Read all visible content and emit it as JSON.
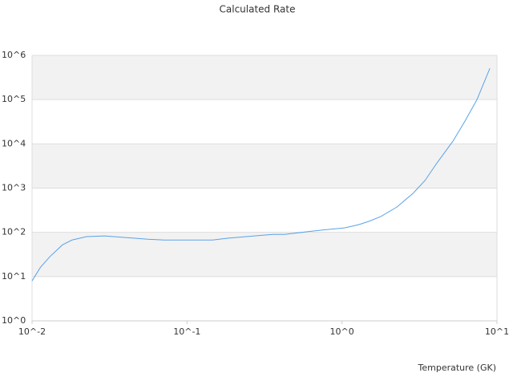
{
  "chart_data": {
    "type": "line",
    "title": "Calculated Rate",
    "x_label": "Temperature (GK)",
    "x_scale": "log",
    "y_scale": "log",
    "grid": true,
    "xlim": [
      0.01,
      10
    ],
    "ylim": [
      1,
      1000000
    ],
    "xticks": [
      {
        "value": 0.01,
        "label": "10^-2"
      },
      {
        "value": 0.1,
        "label": "10^-1"
      },
      {
        "value": 1,
        "label": "10^0"
      },
      {
        "value": 10,
        "label": "10^1"
      }
    ],
    "yticks": [
      {
        "value": 1,
        "label": "10^0"
      },
      {
        "value": 10,
        "label": "10^1"
      },
      {
        "value": 100,
        "label": "10^2"
      },
      {
        "value": 1000,
        "label": "10^3"
      },
      {
        "value": 10000,
        "label": "10^4"
      },
      {
        "value": 100000,
        "label": "10^5"
      },
      {
        "value": 1000000,
        "label": "10^6"
      }
    ],
    "x": [
      0.01,
      0.0113,
      0.013,
      0.0157,
      0.0181,
      0.0225,
      0.0292,
      0.037,
      0.056,
      0.0714,
      0.146,
      0.185,
      0.356,
      0.426,
      0.73,
      1.04,
      1.28,
      1.49,
      1.78,
      2.26,
      2.87,
      3.43,
      4.1,
      5.2,
      6.21,
      7.43,
      9.0
    ],
    "series": [
      {
        "color": "#5aa2e8",
        "values": [
          8,
          16,
          28,
          52,
          67,
          80,
          83,
          78,
          70,
          67,
          67,
          74,
          90,
          90,
          112,
          126,
          149,
          177,
          228,
          373,
          760,
          1480,
          3700,
          11500,
          32500,
          100000,
          510000
        ]
      }
    ]
  }
}
